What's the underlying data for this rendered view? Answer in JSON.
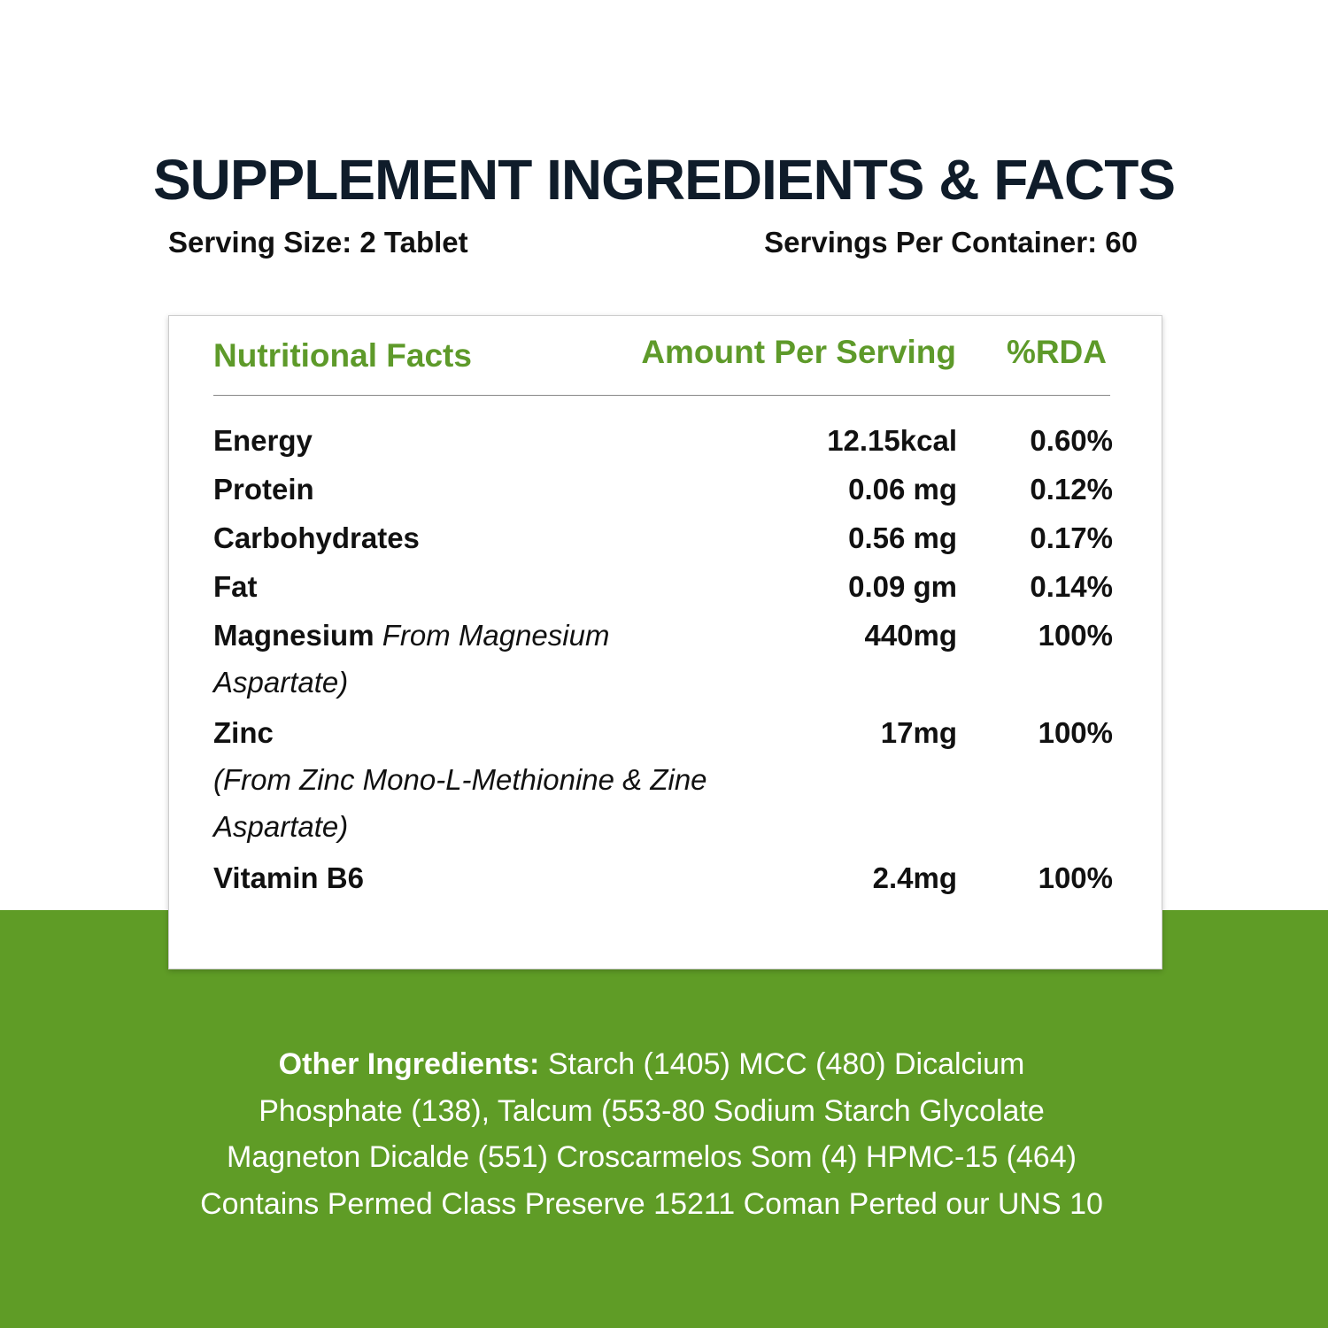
{
  "header": {
    "title": "SUPPLEMENT INGREDIENTS & FACTS",
    "serving_size": "Serving Size: 2 Tablet",
    "servings_per_container": "Servings Per Container: 60"
  },
  "table": {
    "columns": [
      "Nutritional Facts",
      "Amount Per Serving",
      "%RDA"
    ],
    "rows": [
      {
        "name": "Energy",
        "amount": "12.15kcal",
        "rda": "0.60%"
      },
      {
        "name": "Protein",
        "amount": "0.06 mg",
        "rda": "0.12%"
      },
      {
        "name": "Carbohydrates",
        "amount": "0.56 mg",
        "rda": "0.17%"
      },
      {
        "name": "Fat",
        "amount": "0.09 gm",
        "rda": "0.14%"
      },
      {
        "name": "Magnesium",
        "note": "From Magnesium Aspartate)",
        "amount": "440mg",
        "rda": "100%"
      },
      {
        "name": "Zinc",
        "note": "(From Zinc Mono-L-Methionine & Zine Aspartate)",
        "amount": "17mg",
        "rda": "100%"
      },
      {
        "name": "Vitamin B6",
        "amount": "2.4mg",
        "rda": "100%"
      }
    ]
  },
  "other_ingredients": {
    "label": "Other Ingredients:",
    "lines": [
      "Starch (1405) MCC (480) Dicalcium",
      "Phosphate (138), Talcum (553-80 Sodium Starch Glycolate",
      "Magneton Dicalde (551) Croscarmelos Som (4) HPMC-15 (464)",
      "Contains Permed Class Preserve 15211 Coman Perted our UNS 10"
    ]
  }
}
